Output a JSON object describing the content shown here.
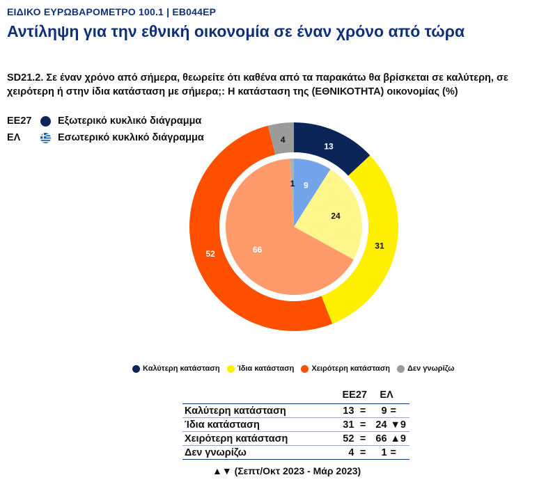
{
  "header": {
    "tag": "ΕΙΔΙΚΟ ΕΥΡΩΒΑΡΟΜΕΤΡΟ 100.1 | EB044EP",
    "title": "Αντίληψη για την εθνική οικονομία σε έναν χρόνο από τώρα"
  },
  "question": "SD21.2. Σε έναν χρόνο από σήμερα, θεωρείτε ότι καθένα από τα παρακάτω θα βρίσκεται σε καλύτερη, σε χειρότερη ή στην ίδια κατάσταση με σήμερα;: Η κατάσταση της (ΕΘΝΙΚΟΤΗΤΑ) οικονομίας (%)",
  "ring_legend": [
    {
      "code": "EE27",
      "label": "Εξωτερικό κυκλικό διάγραμμα",
      "icon": "eu-circle-icon"
    },
    {
      "code": "ΕΛ",
      "label": "Εσωτερικό κυκλικό διάγραμμα",
      "icon": "greek-flag-icon"
    }
  ],
  "chart_data": {
    "type": "pie",
    "categories": [
      "Καλύτερη κατάσταση",
      "Ίδια κατάσταση",
      "Χειρότερη κατάσταση",
      "Δεν γνωρίζω"
    ],
    "series": [
      {
        "name": "EE27",
        "ring": "outer",
        "values": [
          13,
          31,
          52,
          4
        ],
        "colors": [
          "#0b2559",
          "#fff000",
          "#ff5000",
          "#9b9b9b"
        ]
      },
      {
        "name": "ΕΛ",
        "ring": "inner",
        "values": [
          9,
          24,
          66,
          1
        ],
        "colors": [
          "#73a4ea",
          "#fff78c",
          "#ff9a6a",
          "#b0b0b0"
        ]
      }
    ],
    "label_colors": {
      "outer": [
        "#ffffff",
        "#111111",
        "#ffffff",
        "#111111"
      ],
      "inner": [
        "#ffffff",
        "#111111",
        "#ffffff",
        "#111111"
      ]
    }
  },
  "legend": [
    {
      "label": "Καλύτερη κατάσταση",
      "color": "#0b2559"
    },
    {
      "label": "Ίδια κατάσταση",
      "color": "#fff000"
    },
    {
      "label": "Χειρότερη κατάσταση",
      "color": "#ff5000"
    },
    {
      "label": "Δεν γνωρίζω",
      "color": "#9b9b9b"
    }
  ],
  "table": {
    "headers": [
      "EE27",
      "ΕΛ"
    ],
    "rows": [
      {
        "label": "Καλύτερη κατάσταση",
        "eu": "13",
        "eq": "=",
        "gr": "9",
        "change": "="
      },
      {
        "label": "Ίδια κατάσταση",
        "eu": "31",
        "eq": "=",
        "gr": "24",
        "change": "▼9"
      },
      {
        "label": "Χειρότερη κατάσταση",
        "eu": "52",
        "eq": "=",
        "gr": "66",
        "change": "▲9"
      },
      {
        "label": "Δεν γνωρίζω",
        "eu": "4",
        "eq": "=",
        "gr": "1",
        "change": "="
      }
    ]
  },
  "footnote": "▲▼ (Σεπτ/Οκτ 2023 - Μάρ 2023)"
}
